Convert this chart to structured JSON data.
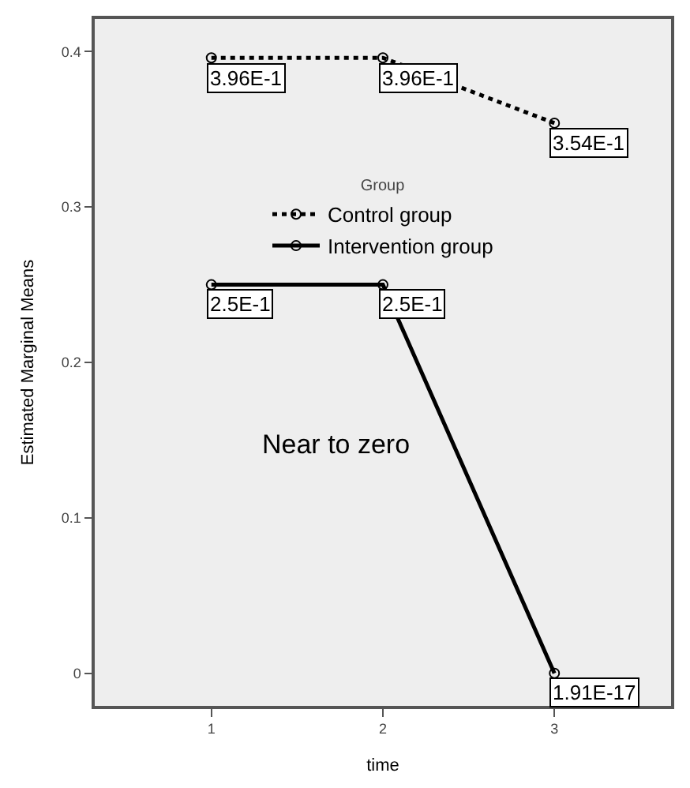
{
  "chart_data": {
    "type": "line",
    "xlabel": "time",
    "ylabel": "Estimated Marginal Means",
    "legend_title": "Group",
    "x": [
      1,
      2,
      3
    ],
    "xlim": [
      0.32,
      3.68
    ],
    "xticks": [
      1,
      2,
      3
    ],
    "ylim": [
      -0.021,
      0.421
    ],
    "yticks": [
      {
        "value": 0,
        "label": "0"
      },
      {
        "value": 0.1,
        "label": "0.1"
      },
      {
        "value": 0.2,
        "label": "0.2"
      },
      {
        "value": 0.3,
        "label": "0.3"
      },
      {
        "value": 0.4,
        "label": "0.4"
      }
    ],
    "series": [
      {
        "name": "Control group",
        "color": "#000000",
        "line_style": "dotted",
        "values": [
          0.396,
          0.396,
          0.354
        ],
        "value_labels": [
          "3.96E-1",
          "3.96E-1",
          "3.54E-1"
        ]
      },
      {
        "name": "Intervention group",
        "color": "#000000",
        "line_style": "solid",
        "values": [
          0.25,
          0.25,
          1.91e-17
        ],
        "value_labels": [
          "2.5E-1",
          "2.5E-1",
          "1.91E-17"
        ]
      }
    ],
    "marker": "circle",
    "grid": false,
    "legend": "top",
    "annotations": [
      "Near to zero"
    ]
  }
}
